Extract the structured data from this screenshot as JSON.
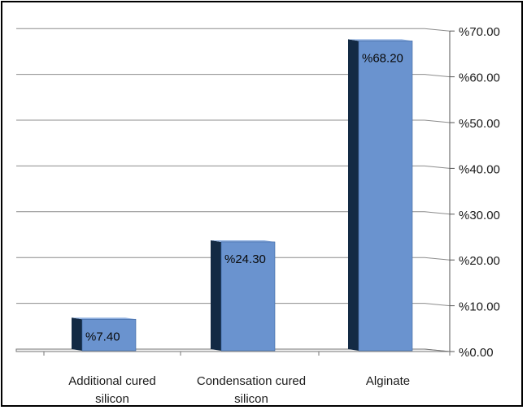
{
  "chart_data": {
    "type": "bar",
    "categories": [
      "Additional cured\nsilicon",
      "Condensation cured\nsilicon",
      "Alginate"
    ],
    "values": [
      7.4,
      24.3,
      68.2
    ],
    "data_labels": [
      "%7.40",
      "%24.30",
      "%68.20"
    ],
    "y_tick_labels": [
      "%0.00",
      "%10.00",
      "%20.00",
      "%30.00",
      "%40.00",
      "%50.00",
      "%60.00",
      "%70.00"
    ],
    "ylim": [
      0,
      70
    ],
    "y_axis_side": "right",
    "grid": true,
    "legend": "none",
    "title": "",
    "xlabel": "",
    "ylabel": "",
    "colors": {
      "bar_front": "#6a93cf",
      "bar_side": "#132a44",
      "bar_top": "#8fb0e0",
      "grid": "#8c8c8c"
    }
  }
}
